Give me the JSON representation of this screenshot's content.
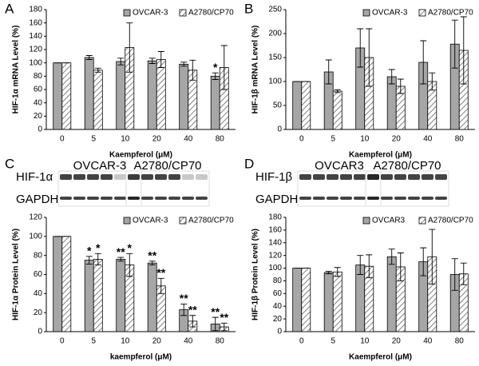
{
  "chart_data": [
    {
      "type": "bar",
      "panel": "A",
      "ylabel": "HIF-1α mRNA Level (%)",
      "xlabel": "Kaempferol (μM)",
      "categories": [
        "0",
        "5",
        "10",
        "20",
        "40",
        "80"
      ],
      "ylim": [
        0,
        180
      ],
      "yticks": [
        0,
        20,
        40,
        60,
        80,
        100,
        120,
        140,
        160,
        180
      ],
      "legend": "upper right",
      "series": [
        {
          "name": "OVCAR-3",
          "color": "#a6a6a6",
          "values": [
            100,
            108,
            102,
            103,
            98,
            80
          ],
          "errors": [
            0,
            3,
            5,
            4,
            3,
            5
          ],
          "significance": [
            null,
            null,
            null,
            null,
            null,
            "*"
          ]
        },
        {
          "name": "A2780/CP70",
          "color": "#808080",
          "hatch": true,
          "values": [
            100,
            89,
            123,
            105,
            89,
            93
          ],
          "errors": [
            0,
            3,
            37,
            12,
            15,
            33
          ]
        }
      ]
    },
    {
      "type": "bar",
      "panel": "B",
      "ylabel": "HIF-1β mRNA Level (%)",
      "xlabel": "Kaempferol (μM)",
      "categories": [
        "0",
        "5",
        "10",
        "20",
        "40",
        "80"
      ],
      "ylim": [
        0,
        250
      ],
      "yticks": [
        0,
        50,
        100,
        150,
        200,
        250
      ],
      "legend": "upper right",
      "series": [
        {
          "name": "OVCAR-3",
          "color": "#a6a6a6",
          "values": [
            100,
            120,
            170,
            110,
            140,
            178
          ],
          "errors": [
            0,
            25,
            40,
            15,
            45,
            50
          ]
        },
        {
          "name": "A2780/CP70",
          "color": "#808080",
          "hatch": true,
          "values": [
            100,
            80,
            150,
            90,
            100,
            165
          ],
          "errors": [
            0,
            3,
            60,
            15,
            18,
            70
          ]
        }
      ]
    },
    {
      "type": "bar",
      "panel": "C",
      "ylabel": "HIF-1α Protein Level (%)",
      "xlabel": "kaempferol (μM)",
      "blot": {
        "rows": [
          "HIF-1α",
          "GAPDH"
        ],
        "groups": [
          "OVCAR-3",
          "A2780/CP70"
        ]
      },
      "categories": [
        "0",
        "5",
        "10",
        "20",
        "40",
        "80"
      ],
      "ylim": [
        0,
        120
      ],
      "yticks": [
        0,
        20,
        40,
        60,
        80,
        100,
        120
      ],
      "legend": "upper right",
      "series": [
        {
          "name": "OVCAR-3",
          "color": "#a6a6a6",
          "values": [
            100,
            75,
            76,
            72,
            23,
            8
          ],
          "errors": [
            0,
            4,
            2,
            2,
            6,
            7
          ],
          "significance": [
            null,
            "*",
            "**",
            "**",
            "**",
            "**"
          ]
        },
        {
          "name": "A2780/CP70",
          "color": "#808080",
          "hatch": true,
          "values": [
            100,
            76,
            70,
            48,
            11,
            5
          ],
          "errors": [
            0,
            6,
            12,
            8,
            6,
            4
          ],
          "significance": [
            null,
            "*",
            "*",
            "**",
            "**",
            "**"
          ]
        }
      ]
    },
    {
      "type": "bar",
      "panel": "D",
      "ylabel": "HIF-1β Protein Level (%)",
      "xlabel": "Kaempferol (μM)",
      "blot": {
        "rows": [
          "HIF-1β",
          "GAPDH"
        ],
        "groups": [
          "OVCAR3",
          "A2780/CP70"
        ]
      },
      "categories": [
        "0",
        "5",
        "10",
        "20",
        "40",
        "80"
      ],
      "ylim": [
        0,
        180
      ],
      "yticks": [
        0,
        20,
        40,
        60,
        80,
        100,
        120,
        140,
        160,
        180
      ],
      "legend": "upper right",
      "series": [
        {
          "name": "OVCAR3",
          "color": "#a6a6a6",
          "values": [
            100,
            93,
            105,
            118,
            110,
            90
          ],
          "errors": [
            0,
            2,
            15,
            12,
            22,
            25
          ]
        },
        {
          "name": "A2780/CP70",
          "color": "#808080",
          "hatch": true,
          "values": [
            100,
            94,
            103,
            102,
            118,
            91
          ],
          "errors": [
            0,
            7,
            18,
            22,
            43,
            17
          ]
        }
      ]
    }
  ]
}
